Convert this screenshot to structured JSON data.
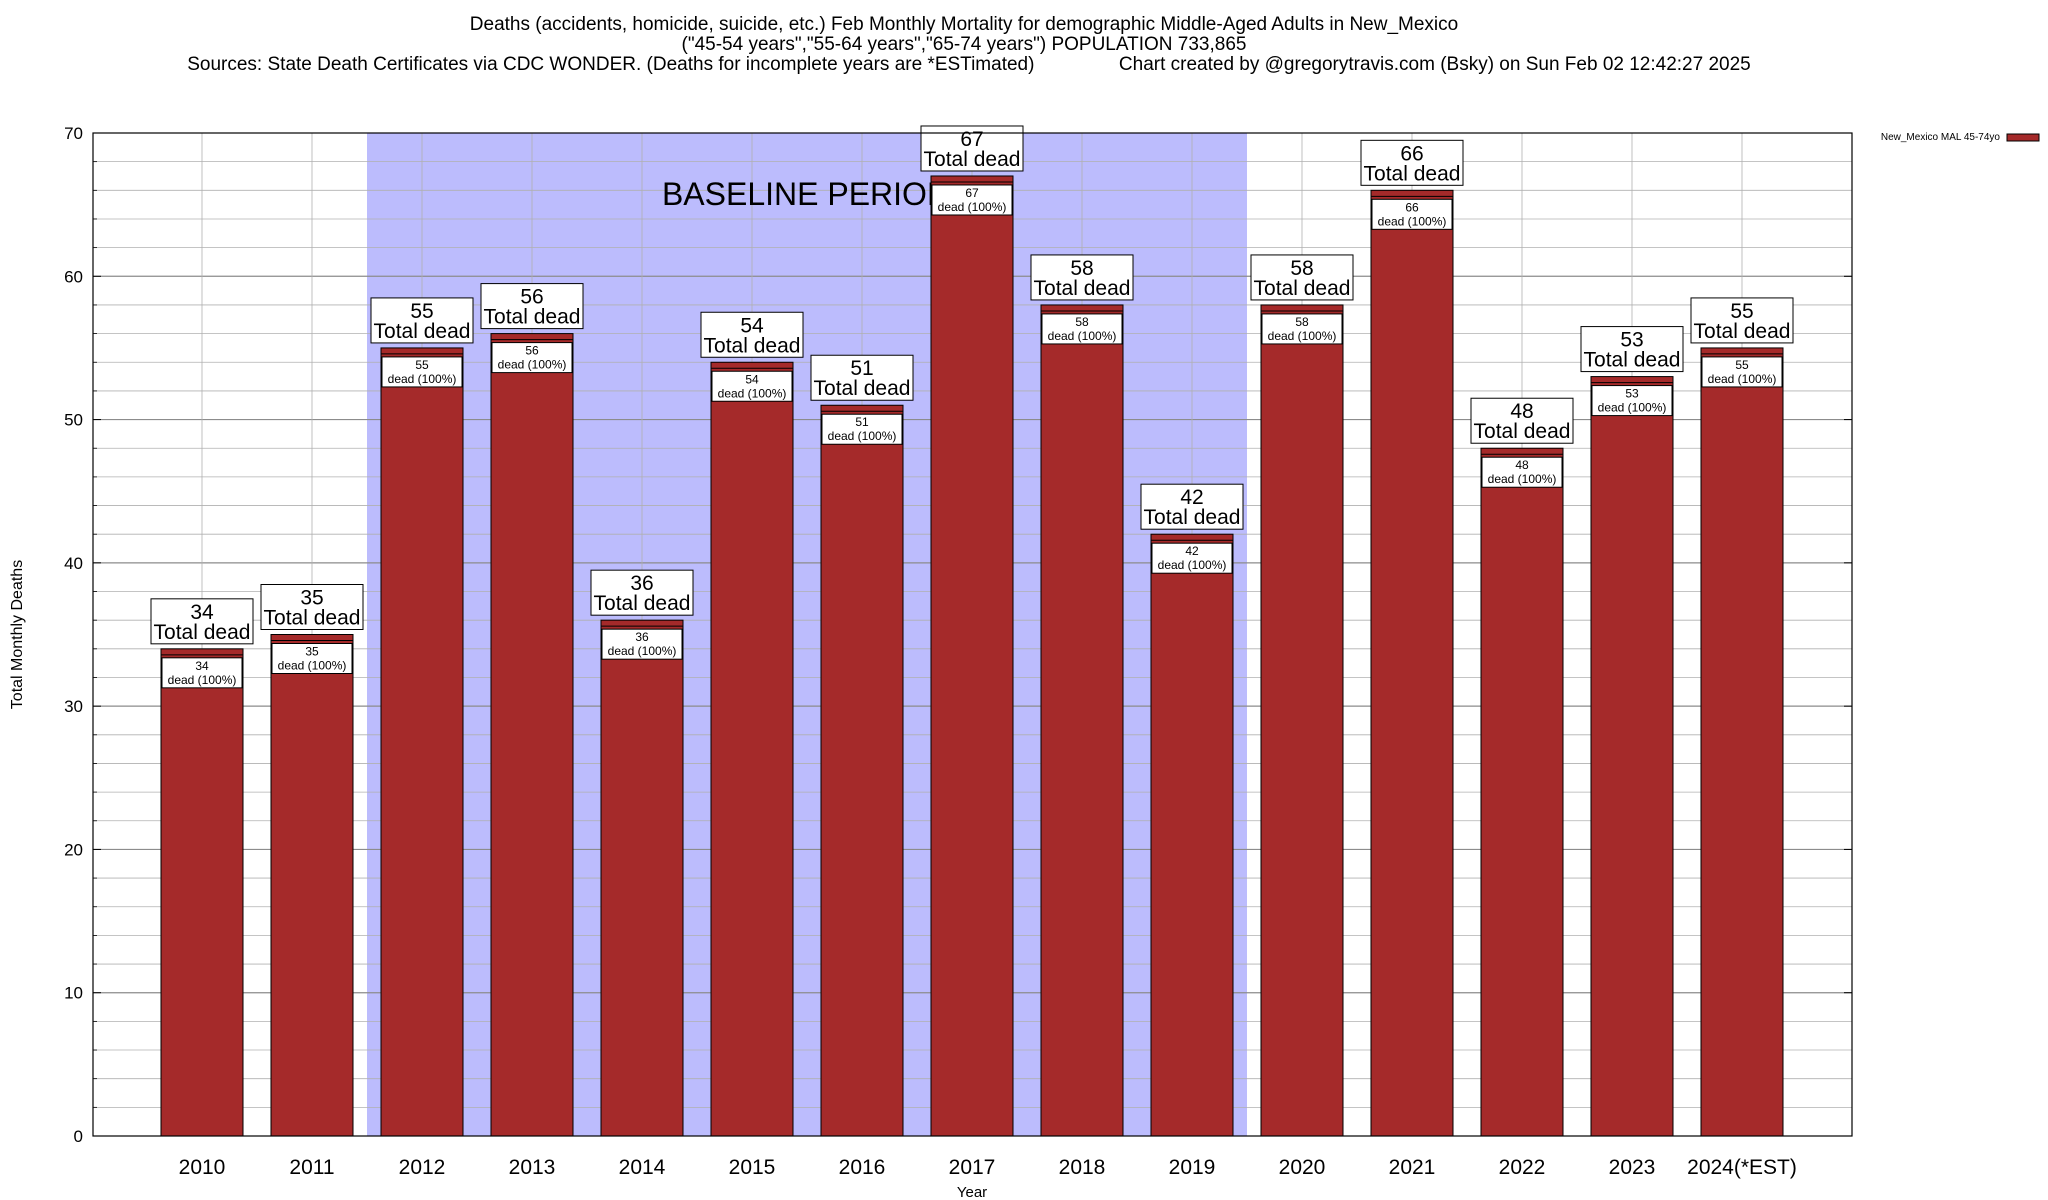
{
  "chart_data": {
    "type": "bar",
    "title": "Deaths (accidents, homicide, suicide, etc.) Feb Monthly Mortality for demographic Middle-Aged Adults in New_Mexico",
    "subtitle": "(\"45-54 years\",\"55-64 years\",\"65-74 years\") POPULATION 733,865",
    "sources": "Sources: State Death Certificates via CDC WONDER. (Deaths for incomplete years are *ESTimated)",
    "credit": "Chart created by @gregorytravis.com (Bsky) on Sun Feb 02 12:42:27 2025",
    "xlabel": "Year",
    "ylabel": "Total Monthly Deaths",
    "ylim": [
      0,
      70
    ],
    "yticks": [
      0,
      10,
      20,
      30,
      40,
      50,
      60,
      70
    ],
    "grid": true,
    "legend_position": "top-right",
    "categories": [
      "2010",
      "2011",
      "2012",
      "2013",
      "2014",
      "2015",
      "2016",
      "2017",
      "2018",
      "2019",
      "2020",
      "2021",
      "2022",
      "2023",
      "2024(*EST)"
    ],
    "series": [
      {
        "name": "New_Mexico MAL 45-74yo",
        "values": [
          34,
          35,
          55,
          56,
          36,
          54,
          51,
          67,
          58,
          42,
          58,
          66,
          48,
          53,
          55
        ]
      }
    ],
    "label_total_text": "Total dead",
    "label_inner_text": "dead (100%)",
    "baseline": {
      "label": "BASELINE PERIOD",
      "from": "2012",
      "to": "2019"
    },
    "colors": {
      "bar": "#a52a2a",
      "bar_edge": "#000000",
      "baseline": "#bcbcfd",
      "grid": "#b0b0b0"
    }
  }
}
